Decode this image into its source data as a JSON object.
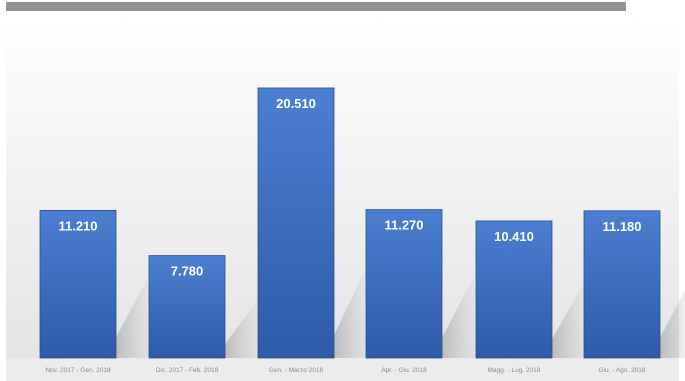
{
  "chart_data": {
    "type": "bar",
    "title": "",
    "xlabel": "",
    "ylabel": "",
    "categories": [
      "Nov. 2017 - Gen. 2018",
      "Dic. 2017 - Feb. 2018",
      "Gen. - Marzo 2018",
      "Apr. - Giu. 2018",
      "Magg. - Lug. 2018",
      "Giu. - Ago. 2018"
    ],
    "values": [
      11210,
      7780,
      20510,
      11270,
      10410,
      11180
    ],
    "value_labels": [
      "11.210",
      "7.780",
      "20.510",
      "11.270",
      "10.410",
      "11.180"
    ],
    "ylim": [
      0,
      24000
    ],
    "grid": false,
    "legend": "none",
    "colors": {
      "bar_top": "#4b7fd1",
      "bar_bottom": "#2f5aa8",
      "bar_edge": "#2a4f95",
      "label": "#ffffff",
      "background_top": "#ffffff",
      "background_bottom": "#e6e6e6"
    }
  }
}
